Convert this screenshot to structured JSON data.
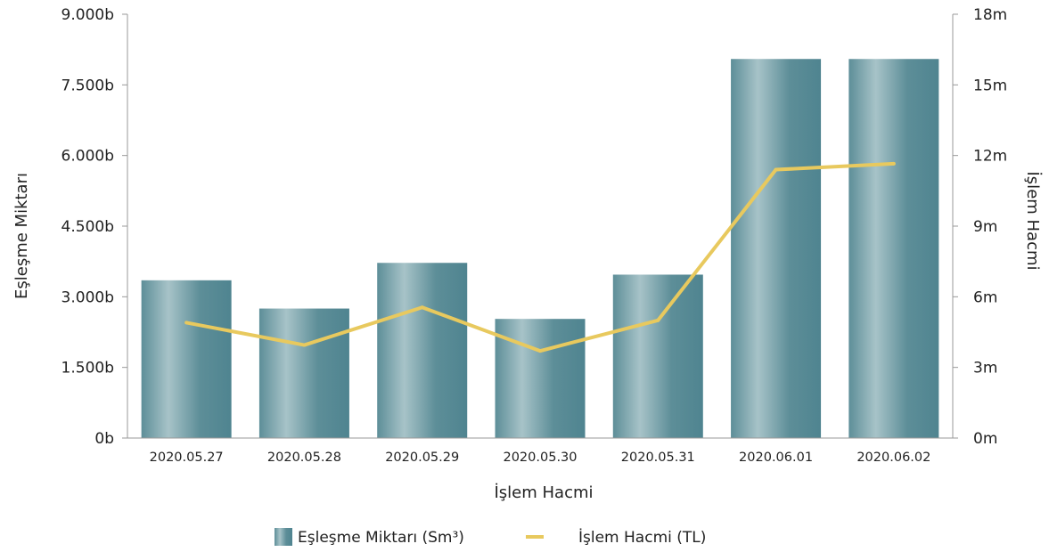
{
  "chart_data": {
    "type": "bar",
    "categories": [
      "2020.05.27",
      "2020.05.28",
      "2020.05.29",
      "2020.05.30",
      "2020.05.31",
      "2020.06.01",
      "2020.06.02"
    ],
    "series": [
      {
        "name": "Eşleşme Miktarı (Sm³)",
        "type": "bar",
        "axis": "left",
        "color": "#5f8f98",
        "values": [
          3350,
          2750,
          3720,
          2530,
          3470,
          8050,
          8050
        ]
      },
      {
        "name": "İşlem Hacmi (TL)",
        "type": "line",
        "axis": "right",
        "color": "#e8c95e",
        "values": [
          4.9,
          3.95,
          5.55,
          3.7,
          5.0,
          11.4,
          11.65
        ]
      }
    ],
    "ylabel": "Eşleşme Miktarı",
    "y2label": "İşlem Hacmi",
    "xlabel": "İşlem Hacmi",
    "ylim": [
      0,
      9000
    ],
    "y2lim": [
      0,
      18
    ],
    "yticks": [
      "0b",
      "1.500b",
      "3.000b",
      "4.500b",
      "6.000b",
      "7.500b",
      "9.000b"
    ],
    "y2ticks": [
      "0m",
      "3m",
      "6m",
      "9m",
      "12m",
      "15m",
      "18m"
    ],
    "grid": false,
    "legend_position": "bottom"
  }
}
